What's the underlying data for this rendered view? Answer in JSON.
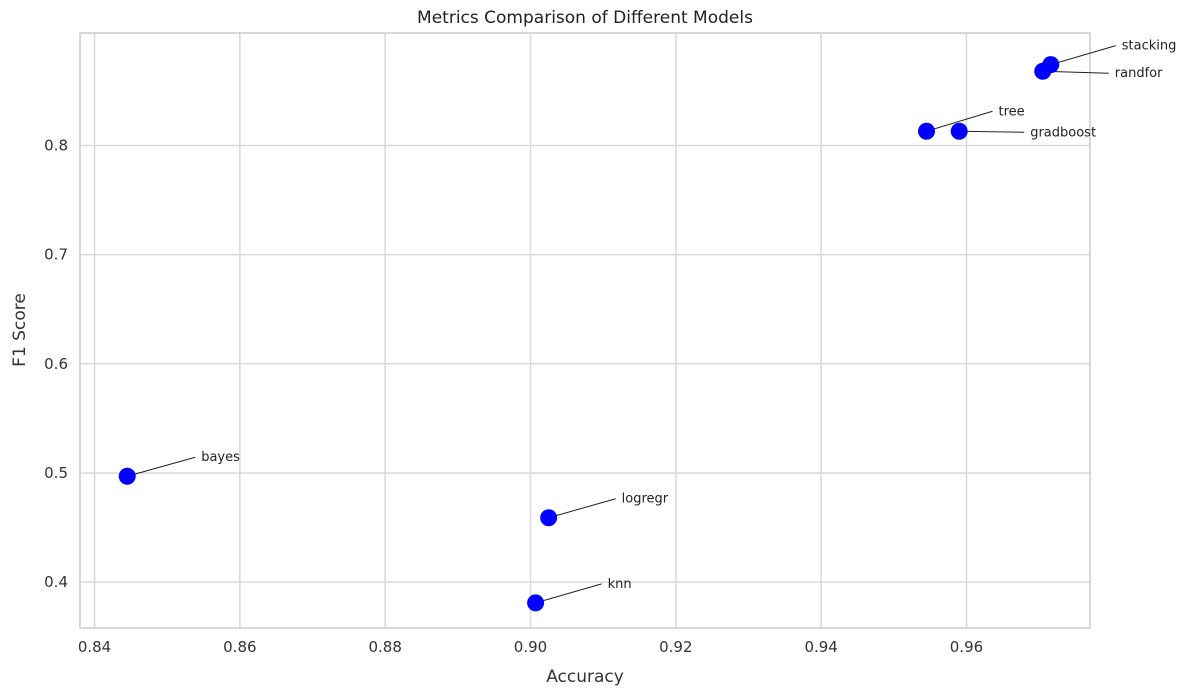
{
  "chart_data": {
    "type": "scatter",
    "title": "Metrics Comparison of Different Models",
    "xlabel": "Accuracy",
    "ylabel": "F1 Score",
    "xlim": [
      0.838,
      0.977
    ],
    "ylim": [
      0.358,
      0.903
    ],
    "xticks": [
      0.84,
      0.86,
      0.88,
      0.9,
      0.92,
      0.94,
      0.96
    ],
    "xtick_labels": [
      "0.84",
      "0.86",
      "0.88",
      "0.90",
      "0.92",
      "0.94",
      "0.96"
    ],
    "yticks": [
      0.4,
      0.5,
      0.6,
      0.7,
      0.8
    ],
    "ytick_labels": [
      "0.4",
      "0.5",
      "0.6",
      "0.7",
      "0.8"
    ],
    "grid": true,
    "marker_color": "#0000ff",
    "points": [
      {
        "label": "bayes",
        "x": 0.8445,
        "y": 0.497
      },
      {
        "label": "logregr",
        "x": 0.9025,
        "y": 0.459
      },
      {
        "label": "knn",
        "x": 0.9007,
        "y": 0.381
      },
      {
        "label": "tree",
        "x": 0.9545,
        "y": 0.813
      },
      {
        "label": "gradboost",
        "x": 0.959,
        "y": 0.813
      },
      {
        "label": "randfor",
        "x": 0.9705,
        "y": 0.868
      },
      {
        "label": "stacking",
        "x": 0.9716,
        "y": 0.874
      }
    ]
  }
}
